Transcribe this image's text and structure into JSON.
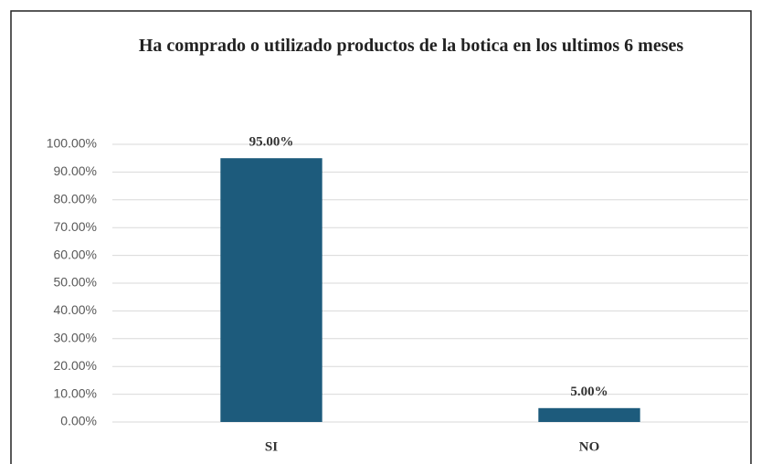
{
  "chart_data": {
    "type": "bar",
    "title": "Ha comprado o utilizado productos de la botica en los ultimos 6 meses",
    "categories": [
      "SI",
      "NO"
    ],
    "values": [
      95,
      5
    ],
    "value_labels": [
      "95.00%",
      "5.00%"
    ],
    "color": "#1d5b7c",
    "ylim": [
      0,
      100
    ],
    "yticks": [
      {
        "value": 0,
        "label": "0.00%"
      },
      {
        "value": 10,
        "label": "10.00%"
      },
      {
        "value": 20,
        "label": "20.00%"
      },
      {
        "value": 30,
        "label": "30.00%"
      },
      {
        "value": 40,
        "label": "40.00%"
      },
      {
        "value": 50,
        "label": "50.00%"
      },
      {
        "value": 60,
        "label": "60.00%"
      },
      {
        "value": 70,
        "label": "70.00%"
      },
      {
        "value": 80,
        "label": "80.00%"
      },
      {
        "value": 90,
        "label": "90.00%"
      },
      {
        "value": 100,
        "label": "100.00%"
      }
    ],
    "grid": true
  }
}
